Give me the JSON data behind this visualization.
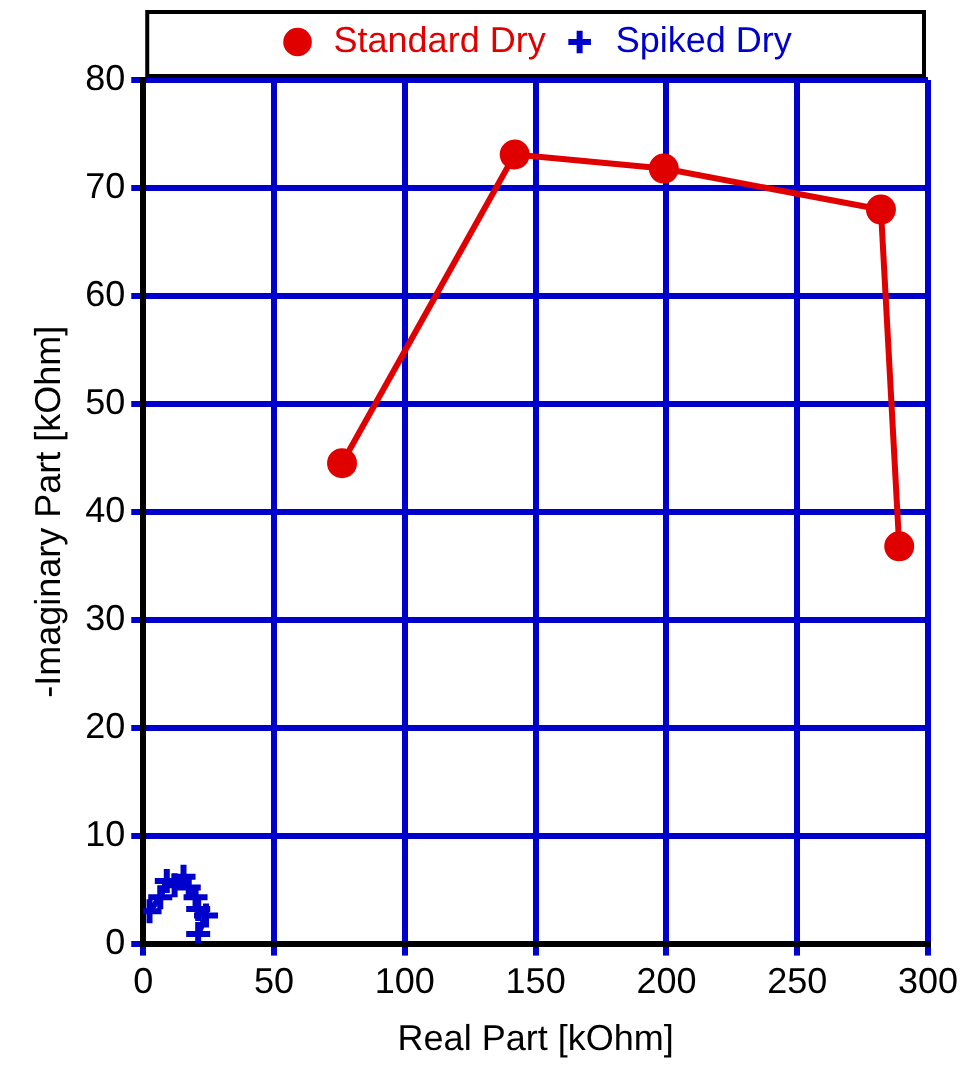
{
  "chart_data": {
    "type": "line",
    "xlabel": "Real Part [kOhm]",
    "ylabel": "-Imaginary Part [kOhm]",
    "xlim": [
      0,
      300
    ],
    "xticks": [
      0,
      50,
      100,
      150,
      200,
      250,
      300
    ],
    "ylim": [
      0,
      80
    ],
    "yticks": [
      0,
      10,
      20,
      30,
      40,
      50,
      60,
      70,
      80
    ],
    "grid": true,
    "legend": "top",
    "line_style": "solid",
    "series": [
      {
        "name": "Standard Dry",
        "color": "#e00000",
        "marker": "circle",
        "x": [
          76,
          142,
          199,
          282,
          289
        ],
        "values": [
          44.5,
          73.1,
          71.8,
          68,
          36.8
        ]
      },
      {
        "name": "Spiked Dry",
        "color": "#0000cc",
        "marker": "cross",
        "x": [
          2.4,
          6.5,
          9,
          12,
          15.4,
          17.4,
          20,
          21,
          24,
          21
        ],
        "values": [
          3,
          4.3,
          5.8,
          5.4,
          6.2,
          5.2,
          4.3,
          3.2,
          2.6,
          0.9
        ]
      }
    ]
  }
}
